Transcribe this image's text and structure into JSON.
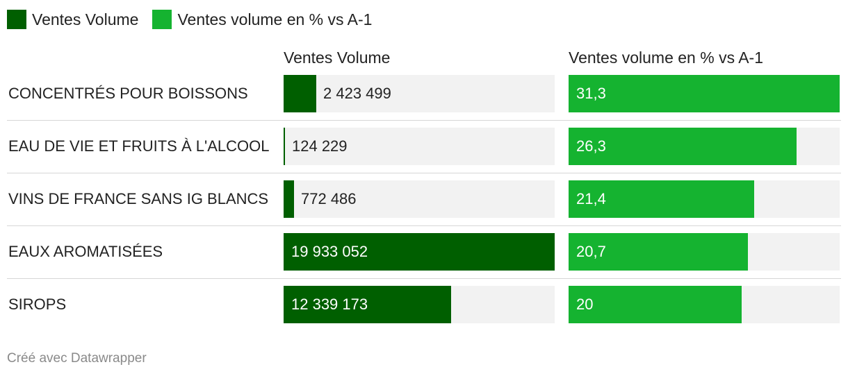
{
  "legend": [
    {
      "label": "Ventes Volume",
      "color": "#005f00"
    },
    {
      "label": "Ventes volume en % vs A-1",
      "color": "#15b330"
    }
  ],
  "footer": "Créé avec Datawrapper",
  "chart_data": {
    "type": "bar",
    "categories": [
      "CONCENTRÉS POUR BOISSONS",
      "EAU DE VIE ET FRUITS À L'ALCOOL",
      "VINS DE FRANCE SANS IG BLANCS",
      "EAUX AROMATISÉES",
      "SIROPS"
    ],
    "series": [
      {
        "name": "Ventes Volume",
        "color": "#005f00",
        "values": [
          2423499,
          124229,
          772486,
          19933052,
          12339173
        ],
        "labels": [
          "2 423 499",
          "124 229",
          "772 486",
          "19 933 052",
          "12 339 173"
        ],
        "max": 19933052
      },
      {
        "name": "Ventes volume en % vs A-1",
        "color": "#15b330",
        "values": [
          31.3,
          26.3,
          21.4,
          20.7,
          20
        ],
        "labels": [
          "31,3",
          "26,3",
          "21,4",
          "20,7",
          "20"
        ],
        "max": 31.3
      }
    ]
  }
}
